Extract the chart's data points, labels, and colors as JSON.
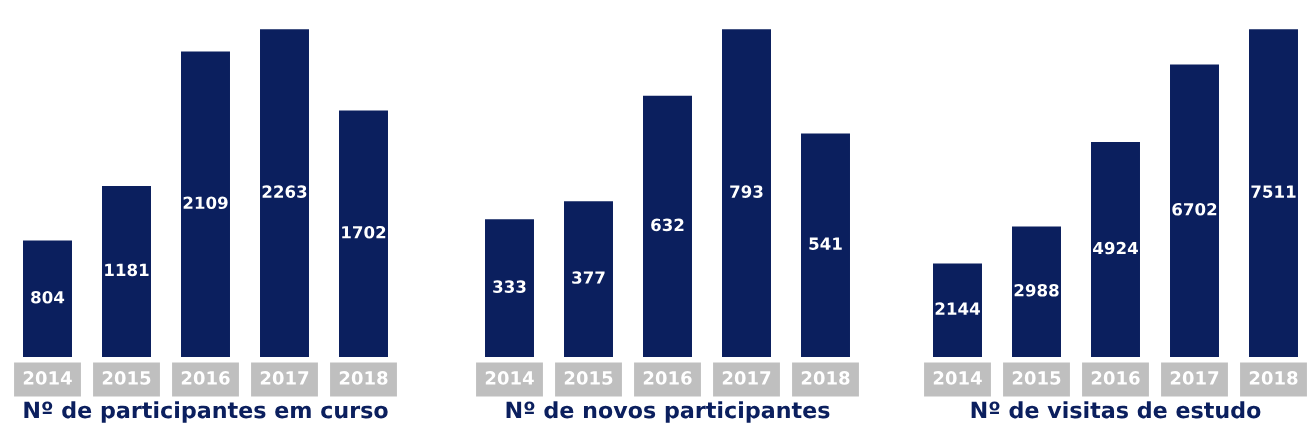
{
  "chart_data": [
    {
      "type": "bar",
      "title": "Nº de participantes em curso",
      "categories": [
        "2014",
        "2015",
        "2016",
        "2017",
        "2018"
      ],
      "values": [
        804,
        1181,
        2109,
        2263,
        1702
      ],
      "color": "#0b1f5e",
      "data_labels": true
    },
    {
      "type": "bar",
      "title": "Nº de novos participantes",
      "categories": [
        "2014",
        "2015",
        "2016",
        "2017",
        "2018"
      ],
      "values": [
        333,
        377,
        632,
        793,
        541
      ],
      "color": "#0b1f5e",
      "data_labels": true
    },
    {
      "type": "bar",
      "title": "Nº de visitas de estudo",
      "categories": [
        "2014",
        "2015",
        "2016",
        "2017",
        "2018"
      ],
      "values": [
        2144,
        2988,
        4924,
        6702,
        7511
      ],
      "color": "#0b1f5e",
      "data_labels": true
    }
  ]
}
